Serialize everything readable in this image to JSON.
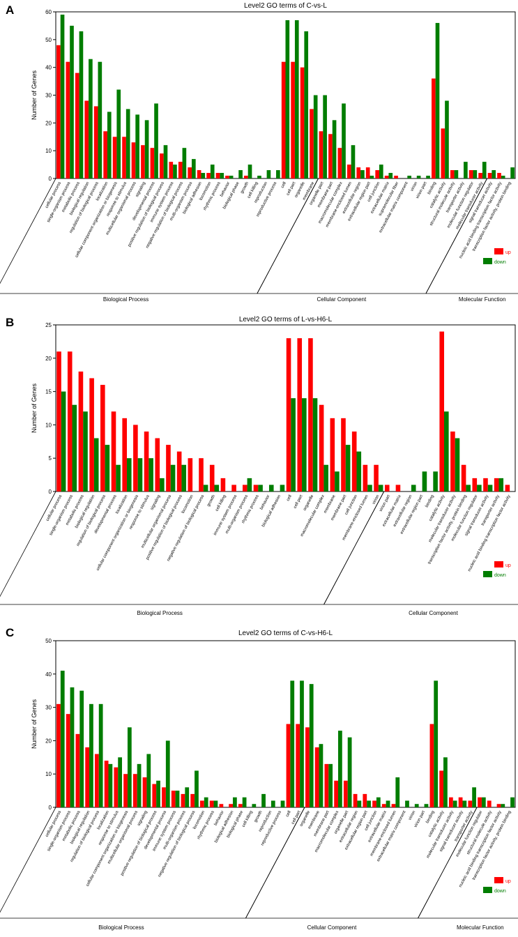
{
  "colors": {
    "up": "#ff0000",
    "down": "#007d00",
    "axis": "#000000"
  },
  "chart_data": [
    {
      "type": "bar",
      "panel_label": "A",
      "title": "Level2 GO terms of C-vs-L",
      "xlabel": "",
      "ylabel": "Number of Genes",
      "ylim": [
        0,
        60
      ],
      "yticks": [
        0,
        10,
        20,
        30,
        40,
        50,
        60
      ],
      "legend": {
        "position": "bottom-right",
        "entries": [
          "up",
          "down"
        ]
      },
      "groups": [
        {
          "label": "Biological Process",
          "start": 0,
          "end": 27
        },
        {
          "label": "Cellular Component",
          "start": 28,
          "end": 45
        },
        {
          "label": "Molecular Function",
          "start": 46,
          "end": 57
        }
      ],
      "categories": [
        "cellular process",
        "single-organism process",
        "metabolic process",
        "biological regulation",
        "regulation of biological process",
        "localization",
        "cellular component organization or biogenesis",
        "response to stimulus",
        "multicellular organismal process",
        "signaling",
        "developmental process",
        "positive regulation of biological process",
        "immune system process",
        "negative regulation of biological process",
        "multi-organism process",
        "biological adhesion",
        "locomotion",
        "rhythmic process",
        "behavior",
        "biological phase",
        "growth",
        "cell killing",
        "reproduction",
        "reproductive process",
        "cell",
        "cell part",
        "organelle",
        "membrane",
        "organelle part",
        "membrane part",
        "macromolecular complex",
        "membrane-enclosed lumen",
        "extracellular region",
        "extracellular region part",
        "cell junction",
        "extracellular matrix",
        "supramolecular fiber",
        "extracellular matrix component",
        "virion",
        "virion part",
        "binding",
        "catalytic activity",
        "structural molecule activity",
        "transporter activity",
        "molecular function regulator",
        "molecular transducer activity",
        "signal transducer activity",
        "nucleic acid binding transcription factor activity",
        "transcription factor activity, protein binding"
      ],
      "series": [
        {
          "name": "up",
          "values": [
            48,
            42,
            38,
            28,
            26,
            17,
            15,
            15,
            13,
            12,
            11,
            9,
            6,
            6,
            4,
            3,
            2,
            2,
            1,
            0,
            1,
            0,
            0,
            0,
            42,
            42,
            40,
            25,
            17,
            16,
            11,
            5,
            4,
            4,
            3,
            1,
            1,
            0,
            0,
            0,
            36,
            18,
            3,
            0,
            3,
            2,
            2,
            2,
            0
          ]
        },
        {
          "name": "down",
          "values": [
            59,
            55,
            53,
            43,
            42,
            24,
            32,
            25,
            23,
            21,
            27,
            12,
            5,
            11,
            7,
            2,
            5,
            2,
            1,
            3,
            5,
            1,
            3,
            3,
            57,
            57,
            53,
            30,
            30,
            21,
            27,
            12,
            3,
            1,
            5,
            2,
            0,
            1,
            1,
            1,
            56,
            28,
            3,
            6,
            3,
            6,
            3,
            1,
            4
          ]
        }
      ]
    },
    {
      "type": "bar",
      "panel_label": "B",
      "title": "Level2 GO terms of L-vs-H6-L",
      "xlabel": "",
      "ylabel": "Number of Genes",
      "ylim": [
        0,
        25
      ],
      "yticks": [
        0,
        5,
        10,
        15,
        20,
        25
      ],
      "legend": {
        "position": "bottom-right",
        "entries": [
          "up",
          "down"
        ]
      },
      "groups": [
        {
          "label": "Biological Process",
          "start": 0,
          "end": 29
        },
        {
          "label": "Cellular Component",
          "start": 30,
          "end": 49
        },
        {
          "label": "Molecular Function",
          "start": 50,
          "end": 60
        }
      ],
      "categories": [
        "cellular process",
        "single-organism process",
        "metabolic process",
        "biological regulation",
        "regulation of biological process",
        "developmental process",
        "localization",
        "cellular component organization or biogenesis",
        "response to stimulus",
        "signaling",
        "multicellular organismal process",
        "positive regulation of biological process",
        "locomotion",
        "negative regulation of biological process",
        "growth",
        "cell killing",
        "immune system process",
        "multi-organism process",
        "rhythmic process",
        "behavior",
        "biological adhesion",
        "cell",
        "cell part",
        "organelle",
        "macromolecular complex",
        "membrane",
        "membrane part",
        "cell junction",
        "membrane-enclosed lumen",
        "virion",
        "virion part",
        "extracellular matrix",
        "extracellular region",
        "extracellular region part",
        "binding",
        "catalytic activity",
        "molecular transducer activity",
        "transcription factor activity, protein binding",
        "molecular function regulator",
        "signal transducer activity",
        "transporter activity",
        "nucleic acid binding transcription factor activity"
      ],
      "series": [
        {
          "name": "up",
          "values": [
            21,
            21,
            18,
            17,
            16,
            12,
            11,
            10,
            9,
            8,
            7,
            6,
            5,
            5,
            4,
            2,
            1,
            1,
            1,
            0,
            0,
            23,
            23,
            23,
            13,
            11,
            11,
            9,
            4,
            4,
            1,
            1,
            0,
            0,
            0,
            24,
            9,
            4,
            2,
            2,
            2,
            1
          ]
        },
        {
          "name": "down",
          "values": [
            15,
            13,
            12,
            8,
            7,
            4,
            5,
            5,
            5,
            2,
            4,
            4,
            0,
            1,
            1,
            0,
            0,
            2,
            1,
            1,
            1,
            14,
            14,
            14,
            4,
            3,
            7,
            6,
            1,
            1,
            0,
            0,
            1,
            3,
            3,
            12,
            8,
            1,
            1,
            1,
            2,
            0
          ]
        }
      ]
    },
    {
      "type": "bar",
      "panel_label": "C",
      "title": "Level2 GO terms of C-vs-H6-L",
      "xlabel": "",
      "ylabel": "Number of Genes",
      "ylim": [
        0,
        50
      ],
      "yticks": [
        0,
        10,
        20,
        30,
        40,
        50
      ],
      "legend": {
        "position": "bottom-right",
        "entries": [
          "up",
          "down"
        ]
      },
      "groups": [
        {
          "label": "Biological Process",
          "start": 0,
          "end": 25
        },
        {
          "label": "Cellular Component",
          "start": 26,
          "end": 43
        },
        {
          "label": "Molecular Function",
          "start": 44,
          "end": 56
        }
      ],
      "categories": [
        "cellular process",
        "single-organism process",
        "metabolic process",
        "biological regulation",
        "regulation of biological process",
        "localization",
        "response to stimulus",
        "cellular component organization or biogenesis",
        "multicellular organismal process",
        "signaling",
        "positive regulation of biological process",
        "developmental process",
        "immune system process",
        "multi-organism process",
        "negative regulation of biological process",
        "locomotion",
        "rhythmic process",
        "behavior",
        "biological adhesion",
        "biological phase",
        "cell killing",
        "growth",
        "reproduction",
        "reproductive process",
        "cell",
        "cell part",
        "organelle",
        "membrane",
        "membrane part",
        "macromolecular complex",
        "organelle part",
        "extracellular region",
        "extracellular region part",
        "cell junction",
        "extracellular matrix",
        "membrane-enclosed lumen",
        "extracellular matrix component",
        "virion",
        "virion part",
        "binding",
        "catalytic activity",
        "molecular transducer activity",
        "signal transducer activity",
        "transporter activity",
        "molecular function regulator",
        "structural molecule activity",
        "nucleic acid binding transcription factor activity",
        "transcription factor activity, protein binding"
      ],
      "series": [
        {
          "name": "up",
          "values": [
            31,
            28,
            22,
            18,
            16,
            14,
            12,
            10,
            10,
            9,
            7,
            6,
            5,
            4,
            4,
            2,
            2,
            1,
            1,
            1,
            0,
            0,
            0,
            0,
            25,
            25,
            24,
            18,
            13,
            8,
            8,
            4,
            4,
            2,
            1,
            1,
            0,
            0,
            0,
            25,
            11,
            3,
            3,
            2,
            3,
            2,
            1,
            0
          ]
        },
        {
          "name": "down",
          "values": [
            41,
            36,
            35,
            31,
            31,
            13,
            15,
            24,
            13,
            16,
            8,
            20,
            5,
            6,
            11,
            3,
            2,
            0,
            3,
            3,
            1,
            4,
            2,
            2,
            38,
            38,
            37,
            19,
            13,
            23,
            21,
            2,
            2,
            3,
            2,
            9,
            2,
            1,
            1,
            38,
            15,
            2,
            2,
            6,
            3,
            0,
            1,
            3
          ]
        }
      ]
    }
  ]
}
